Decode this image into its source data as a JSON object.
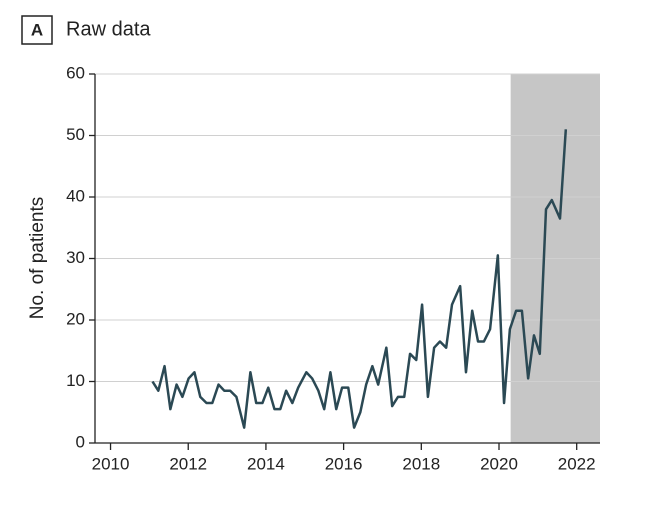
{
  "chart_data": {
    "type": "line",
    "panel": "A",
    "title": "Raw data",
    "ylabel": "No. of patients",
    "x": [
      2011.08,
      2011.23,
      2011.39,
      2011.54,
      2011.7,
      2011.85,
      2012.01,
      2012.16,
      2012.31,
      2012.47,
      2012.62,
      2012.78,
      2012.93,
      2013.08,
      2013.24,
      2013.44,
      2013.6,
      2013.75,
      2013.91,
      2014.06,
      2014.22,
      2014.37,
      2014.52,
      2014.68,
      2014.83,
      2015.04,
      2015.19,
      2015.35,
      2015.5,
      2015.66,
      2015.81,
      2015.96,
      2016.12,
      2016.27,
      2016.43,
      2016.58,
      2016.74,
      2016.89,
      2017.1,
      2017.25,
      2017.4,
      2017.56,
      2017.71,
      2017.87,
      2018.02,
      2018.17,
      2018.33,
      2018.48,
      2018.64,
      2018.79,
      2019.0,
      2019.15,
      2019.31,
      2019.46,
      2019.61,
      2019.77,
      2019.97,
      2020.13,
      2020.28,
      2020.44,
      2020.59,
      2020.75,
      2020.9,
      2021.05,
      2021.21,
      2021.36,
      2021.57,
      2021.72
    ],
    "series": [
      {
        "name": "No. of patients",
        "color": "#2b4954",
        "values": [
          10,
          8.5,
          12.5,
          5.5,
          9.5,
          7.5,
          10.5,
          11.5,
          7.5,
          6.5,
          6.5,
          9.5,
          8.5,
          8.5,
          7.5,
          2.5,
          11.5,
          6.5,
          6.5,
          9,
          5.5,
          5.5,
          8.5,
          6.5,
          9,
          11.5,
          10.5,
          8.5,
          5.5,
          11.5,
          5.5,
          9,
          9,
          2.5,
          5,
          9.5,
          12.5,
          9.5,
          15.5,
          6,
          7.5,
          7.5,
          14.5,
          13.5,
          22.5,
          7.5,
          15.5,
          16.5,
          15.5,
          22.5,
          25.5,
          11.5,
          21.5,
          16.5,
          16.5,
          18.5,
          30.5,
          6.5,
          18.5,
          21.5,
          21.5,
          10.5,
          17.5,
          14.5,
          38,
          39.5,
          36.5,
          51
        ]
      }
    ],
    "shade": [
      2020.3,
      2022.6
    ],
    "shade_color": "#c6c6c6",
    "xlim": [
      2009.6,
      2022.6
    ],
    "xticks": [
      2010,
      2012,
      2014,
      2016,
      2018,
      2020,
      2022
    ],
    "ylim": [
      0,
      60
    ],
    "yticks": [
      0,
      10,
      20,
      30,
      40,
      50,
      60
    ],
    "grid": true
  }
}
